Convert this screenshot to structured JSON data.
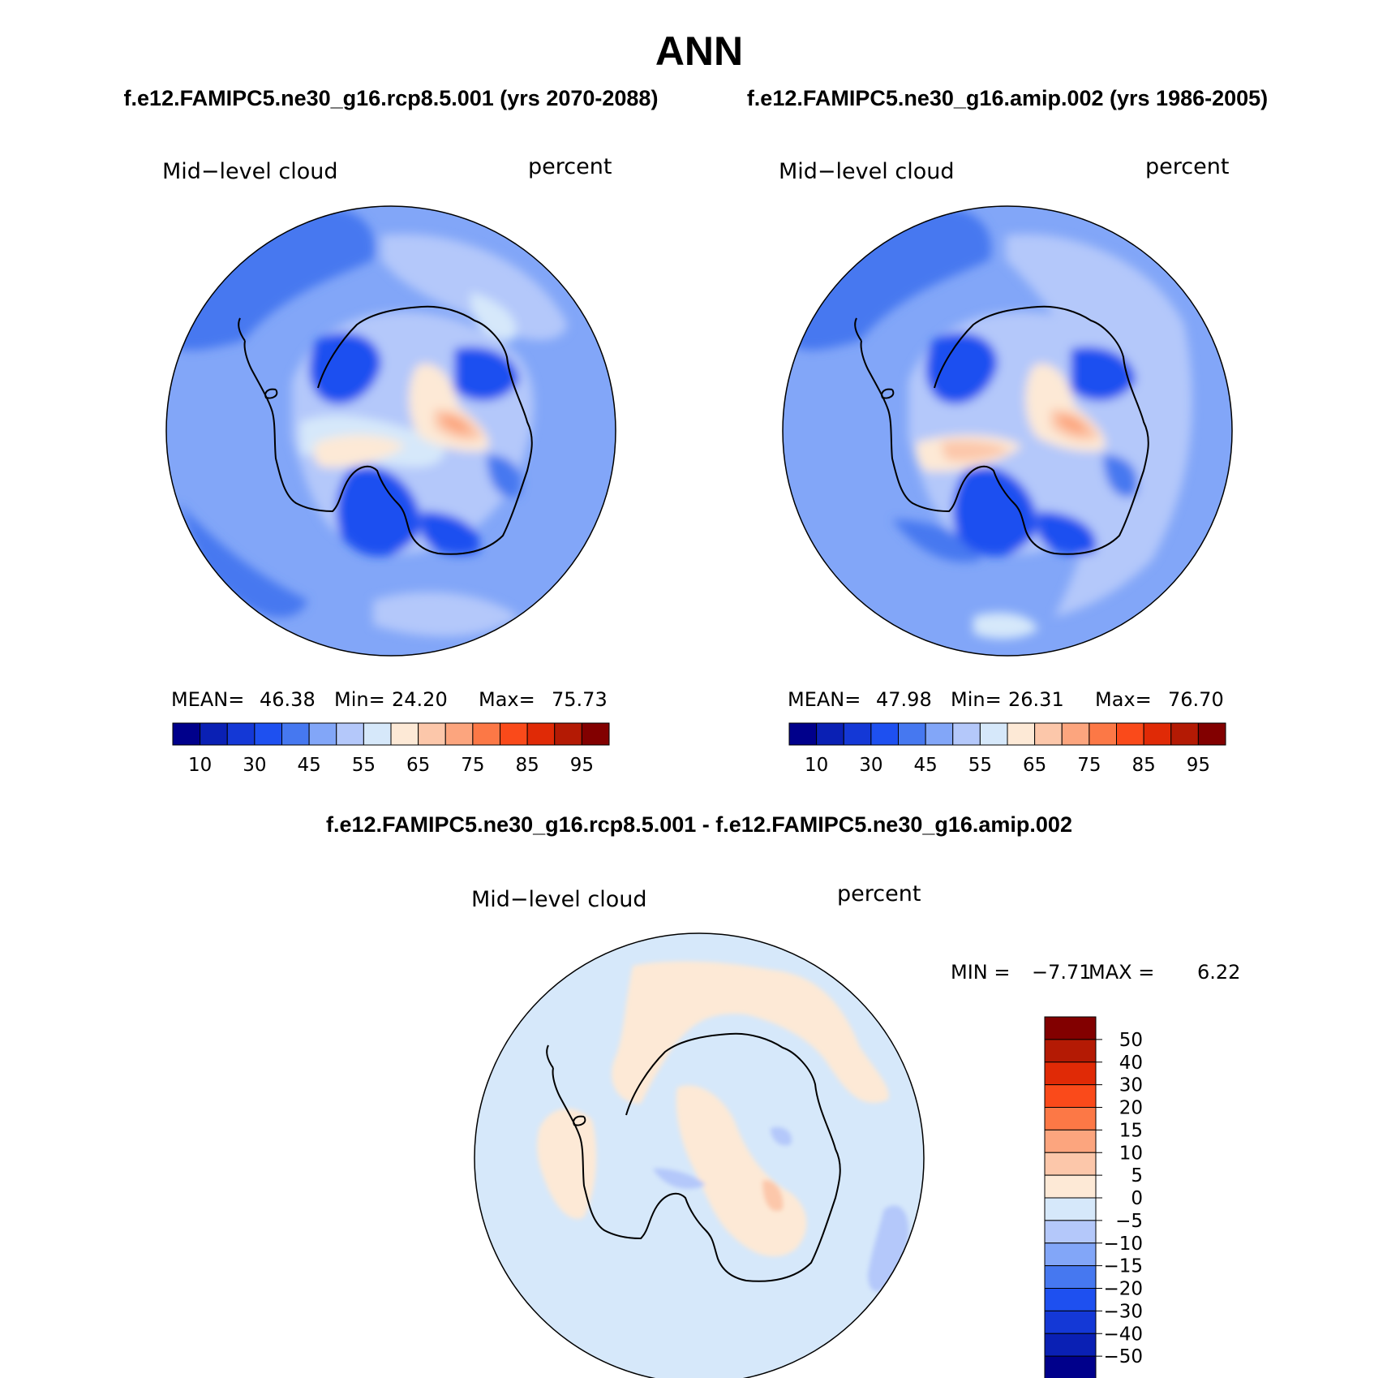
{
  "page": {
    "title": "ANN",
    "subtitle_left": "f.e12.FAMIPC5.ne30_g16.rcp8.5.001 (yrs 2070-2088)",
    "subtitle_right": "f.e12.FAMIPC5.ne30_g16.amip.002 (yrs 1986-2005)",
    "diff_title": "f.e12.FAMIPC5.ne30_g16.rcp8.5.001 - f.e12.FAMIPC5.ne30_g16.amip.002"
  },
  "panels": [
    {
      "variable": "Mid−level cloud",
      "units": "percent",
      "stats": {
        "mean_label": "MEAN=",
        "mean": "46.38",
        "min_label": "Min=",
        "min": "24.20",
        "max_label": "Max=",
        "max": "75.73"
      }
    },
    {
      "variable": "Mid−level cloud",
      "units": "percent",
      "stats": {
        "mean_label": "MEAN=",
        "mean": "47.98",
        "min_label": "Min=",
        "min": "26.31",
        "max_label": "Max=",
        "max": "76.70"
      }
    }
  ],
  "diff_panel": {
    "variable": "Mid−level cloud",
    "units": "percent",
    "stats": {
      "min_label": "MIN =",
      "min": "−7.71",
      "max_label": "MAX =",
      "max": "6.22"
    }
  },
  "colorbar_abs": {
    "colors": [
      "#00008b",
      "#0a20b4",
      "#1438d6",
      "#1e50f0",
      "#4678f0",
      "#82a6f8",
      "#b4c8fa",
      "#d6e8fa",
      "#fde9d6",
      "#fcc7aa",
      "#fca57e",
      "#fc7846",
      "#fa4a1a",
      "#e02a06",
      "#b41a04",
      "#820000"
    ],
    "tick_labels": [
      "10",
      "30",
      "45",
      "55",
      "65",
      "75",
      "85",
      "95"
    ]
  },
  "colorbar_diff": {
    "colors": [
      "#820000",
      "#b41a04",
      "#e02a06",
      "#fa4a1a",
      "#fc7846",
      "#fca57e",
      "#fcc7aa",
      "#fde9d6",
      "#d6e8fa",
      "#b4c8fa",
      "#82a6f8",
      "#4678f0",
      "#1e50f0",
      "#1438d6",
      "#0a20b4",
      "#00008b"
    ],
    "tick_labels": [
      "50",
      "40",
      "30",
      "20",
      "15",
      "10",
      "5",
      "0",
      "−5",
      "−10",
      "−15",
      "−20",
      "−30",
      "−40",
      "−50"
    ]
  },
  "map_colors": {
    "ocean_abs": "#82a6f8",
    "coast": "#000000"
  }
}
